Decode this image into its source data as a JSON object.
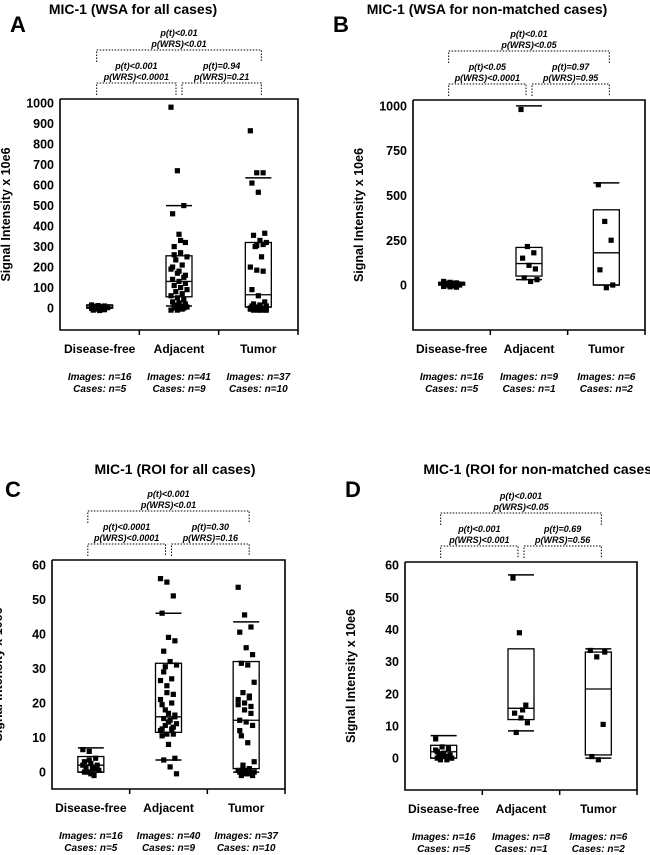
{
  "chart_data": [
    {
      "type": "box",
      "panel_letter": "A",
      "title": "MIC-1 (WSA for all cases)",
      "ylabel": "Signal Intensity x 10e6",
      "yticks": [
        0,
        100,
        200,
        300,
        400,
        500,
        600,
        700,
        800,
        900,
        1000
      ],
      "ylim": [
        -107,
        1020
      ],
      "categories": [
        "Disease-free",
        "Adjacent",
        "Tumor"
      ],
      "counts": [
        {
          "images": "Images: n=16",
          "cases": "Cases: n=5"
        },
        {
          "images": "Images: n=41",
          "cases": "Cases: n=9"
        },
        {
          "images": "Images: n=37",
          "cases": "Cases: n=10"
        }
      ],
      "comparisons": [
        {
          "from": 0,
          "to": 2,
          "level": "outer",
          "p_t": "p(t)<0.01",
          "p_wrs": "p(WRS)<0.01"
        },
        {
          "from": 0,
          "to": 1,
          "level": "inner",
          "p_t": "p(t)<0.001",
          "p_wrs": "p(WRS)<0.0001"
        },
        {
          "from": 1,
          "to": 2,
          "level": "inner",
          "p_t": "p(t)=0.94",
          "p_wrs": "p(WRS)=0.21"
        }
      ],
      "groups": [
        {
          "box": [
            0,
            5,
            15
          ],
          "whiskers": [
            0,
            15
          ],
          "points": [
            15,
            12,
            10,
            8,
            6,
            5,
            4,
            3,
            2,
            0,
            0,
            -2,
            -5,
            -8,
            -10,
            -12
          ]
        },
        {
          "box": [
            55,
            130,
            255
          ],
          "whiskers": [
            10,
            500
          ],
          "points": [
            980,
            670,
            500,
            460,
            360,
            320,
            300,
            270,
            250,
            235,
            210,
            190,
            170,
            150,
            140,
            130,
            120,
            110,
            100,
            90,
            80,
            70,
            60,
            50,
            40,
            30,
            25,
            20,
            15,
            10,
            5,
            0,
            -5,
            -10,
            -10,
            0,
            200,
            180,
            160,
            260,
            330
          ]
        },
        {
          "box": [
            5,
            65,
            320
          ],
          "whiskers": [
            5,
            635
          ],
          "points": [
            865,
            660,
            660,
            610,
            565,
            365,
            355,
            330,
            320,
            300,
            250,
            200,
            185,
            180,
            90,
            60,
            30,
            20,
            15,
            10,
            5,
            0,
            0,
            0,
            -5,
            -5,
            -10,
            -10,
            -10,
            -10,
            -10,
            5,
            0,
            -5,
            305,
            310,
            10
          ]
        }
      ]
    },
    {
      "type": "box",
      "panel_letter": "B",
      "title": "MIC-1 (WSA for non-matched cases)",
      "ylabel": "Signal Intensity x 10e6",
      "yticks": [
        0,
        250,
        500,
        750,
        1000
      ],
      "ylim": [
        -251,
        1033
      ],
      "categories": [
        "Disease-free",
        "Adjacent",
        "Tumor"
      ],
      "counts": [
        {
          "images": "Images: n=16",
          "cases": "Cases: n=5"
        },
        {
          "images": "Images: n=9",
          "cases": "Cases: n=1"
        },
        {
          "images": "Images: n=6",
          "cases": "Cases: n=2"
        }
      ],
      "comparisons": [
        {
          "from": 0,
          "to": 2,
          "level": "outer",
          "p_t": "p(t)<0.01",
          "p_wrs": "p(WRS)<0.05"
        },
        {
          "from": 0,
          "to": 1,
          "level": "inner",
          "p_t": "p(t)<0.05",
          "p_wrs": "p(WRS)<0.0001"
        },
        {
          "from": 1,
          "to": 2,
          "level": "inner",
          "p_t": "p(t)=0.97",
          "p_wrs": "p(WRS)=0.95"
        }
      ],
      "groups": [
        {
          "box": [
            0,
            8,
            15
          ],
          "whiskers": [
            0,
            15
          ],
          "points": [
            20,
            15,
            12,
            10,
            8,
            6,
            5,
            3,
            0,
            0,
            -5,
            -8,
            -10,
            -12,
            5,
            10
          ]
        },
        {
          "box": [
            50,
            120,
            210
          ],
          "whiskers": [
            30,
            1000
          ],
          "points": [
            980,
            215,
            180,
            150,
            110,
            90,
            40,
            20,
            30
          ]
        },
        {
          "box": [
            0,
            180,
            420
          ],
          "whiskers": [
            0,
            570
          ],
          "points": [
            560,
            355,
            250,
            85,
            -15,
            0
          ]
        }
      ]
    },
    {
      "type": "box",
      "panel_letter": "C",
      "title": "MIC-1 (ROI for all cases)",
      "ylabel": "Signal Intensity x 10e6",
      "yticks": [
        0,
        10,
        20,
        30,
        40,
        50,
        60
      ],
      "ylim": [
        -4.9,
        61.4
      ],
      "categories": [
        "Disease-free",
        "Adjacent",
        "Tumor"
      ],
      "counts": [
        {
          "images": "Images: n=16",
          "cases": "Cases: n=5"
        },
        {
          "images": "Images: n=40",
          "cases": "Cases: n=9"
        },
        {
          "images": "Images: n=37",
          "cases": "Cases: n=10"
        }
      ],
      "comparisons": [
        {
          "from": 0,
          "to": 2,
          "level": "outer",
          "p_t": "p(t)<0.001",
          "p_wrs": "p(WRS)<0.01"
        },
        {
          "from": 0,
          "to": 1,
          "level": "inner",
          "p_t": "p(t)<0.0001",
          "p_wrs": "p(WRS)<0.0001"
        },
        {
          "from": 1,
          "to": 2,
          "level": "inner",
          "p_t": "p(t)=0.30",
          "p_wrs": "p(WRS)=0.16"
        }
      ],
      "groups": [
        {
          "box": [
            0,
            2,
            4.5
          ],
          "whiskers": [
            0,
            7
          ],
          "points": [
            6.5,
            6,
            4,
            3,
            2.5,
            2,
            1.5,
            1,
            0.5,
            0,
            -1,
            2,
            3.5,
            1,
            0,
            -0.5
          ]
        },
        {
          "box": [
            11.5,
            16,
            31.5
          ],
          "whiskers": [
            3.5,
            46
          ],
          "points": [
            56,
            55,
            51,
            46,
            39,
            38,
            35,
            32,
            31,
            30.5,
            27,
            26.5,
            23,
            22.5,
            19.5,
            17,
            16,
            15.5,
            15,
            14,
            13.5,
            12.5,
            12,
            11,
            11,
            10.5,
            8,
            4,
            3.5,
            1.5,
            -0.5,
            18,
            20,
            21,
            25,
            13,
            12.5,
            14.5,
            16.5,
            29
          ]
        },
        {
          "box": [
            1,
            15,
            32
          ],
          "whiskers": [
            0,
            43.5
          ],
          "points": [
            53.5,
            45.5,
            42,
            40.5,
            36,
            34,
            31.5,
            31,
            26,
            23,
            21.5,
            21,
            20,
            19,
            15,
            14.5,
            13.5,
            10.5,
            8.5,
            3,
            2,
            1,
            0.5,
            0.5,
            0,
            0,
            -0.5,
            -1,
            -1,
            -0.5,
            0,
            1,
            22,
            19.5,
            18,
            17,
            12
          ]
        }
      ]
    },
    {
      "type": "box",
      "panel_letter": "D",
      "title": "MIC-1 (ROI for non-matched cases)",
      "ylabel": "Signal Intensity x 10e6",
      "yticks": [
        0,
        10,
        20,
        30,
        40,
        50,
        60
      ],
      "ylim": [
        -9.9,
        61
      ],
      "categories": [
        "Disease-free",
        "Adjacent",
        "Tumor"
      ],
      "counts": [
        {
          "images": "Images: n=16",
          "cases": "Cases: n=5"
        },
        {
          "images": "Images: n=8",
          "cases": "Cases: n=1"
        },
        {
          "images": "Images: n=6",
          "cases": "Cases: n=2"
        }
      ],
      "comparisons": [
        {
          "from": 0,
          "to": 2,
          "level": "outer",
          "p_t": "p(t)<0.001",
          "p_wrs": "p(WRS)<0.05"
        },
        {
          "from": 0,
          "to": 1,
          "level": "inner",
          "p_t": "p(t)<0.001",
          "p_wrs": "p(WRS)<0.001"
        },
        {
          "from": 1,
          "to": 2,
          "level": "inner",
          "p_t": "p(t)=0.69",
          "p_wrs": "p(WRS)=0.56"
        }
      ],
      "groups": [
        {
          "box": [
            0,
            2,
            4
          ],
          "whiskers": [
            0,
            7
          ],
          "points": [
            6,
            3.5,
            3,
            2,
            1.5,
            1,
            1,
            0.5,
            0,
            -0.5,
            -0.5,
            2.5,
            1,
            0.5,
            0,
            1.5
          ]
        },
        {
          "box": [
            12,
            15.5,
            34
          ],
          "whiskers": [
            8.5,
            57
          ],
          "points": [
            56,
            39,
            16.5,
            14,
            12.5,
            11,
            8,
            15
          ]
        },
        {
          "box": [
            1,
            21.5,
            33
          ],
          "whiskers": [
            0,
            34
          ],
          "points": [
            33.5,
            31.5,
            10.5,
            0.5,
            -0.5,
            33
          ]
        }
      ]
    }
  ]
}
